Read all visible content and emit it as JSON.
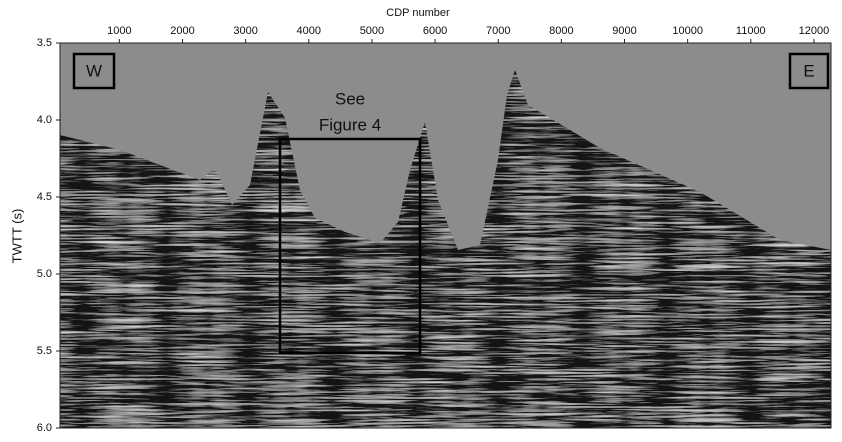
{
  "chart_data": {
    "type": "seismic-section",
    "x_label": "CDP number",
    "y_label": "TWTT (s)",
    "xlim": [
      60,
      12270
    ],
    "ylim": [
      3.5,
      6.0
    ],
    "xticks": [
      1000,
      2000,
      3000,
      4000,
      5000,
      6000,
      7000,
      8000,
      9000,
      10000,
      11000,
      12000
    ],
    "yticks": [
      3.5,
      {
        "value": 4,
        "label": "4.0"
      },
      4.5,
      {
        "value": 5,
        "label": "5.0"
      },
      5.5,
      {
        "value": 6,
        "label": "6.0"
      }
    ],
    "labels": {
      "west": "W",
      "east": "E"
    },
    "callout": [
      "See",
      "Figure 4"
    ]
  }
}
